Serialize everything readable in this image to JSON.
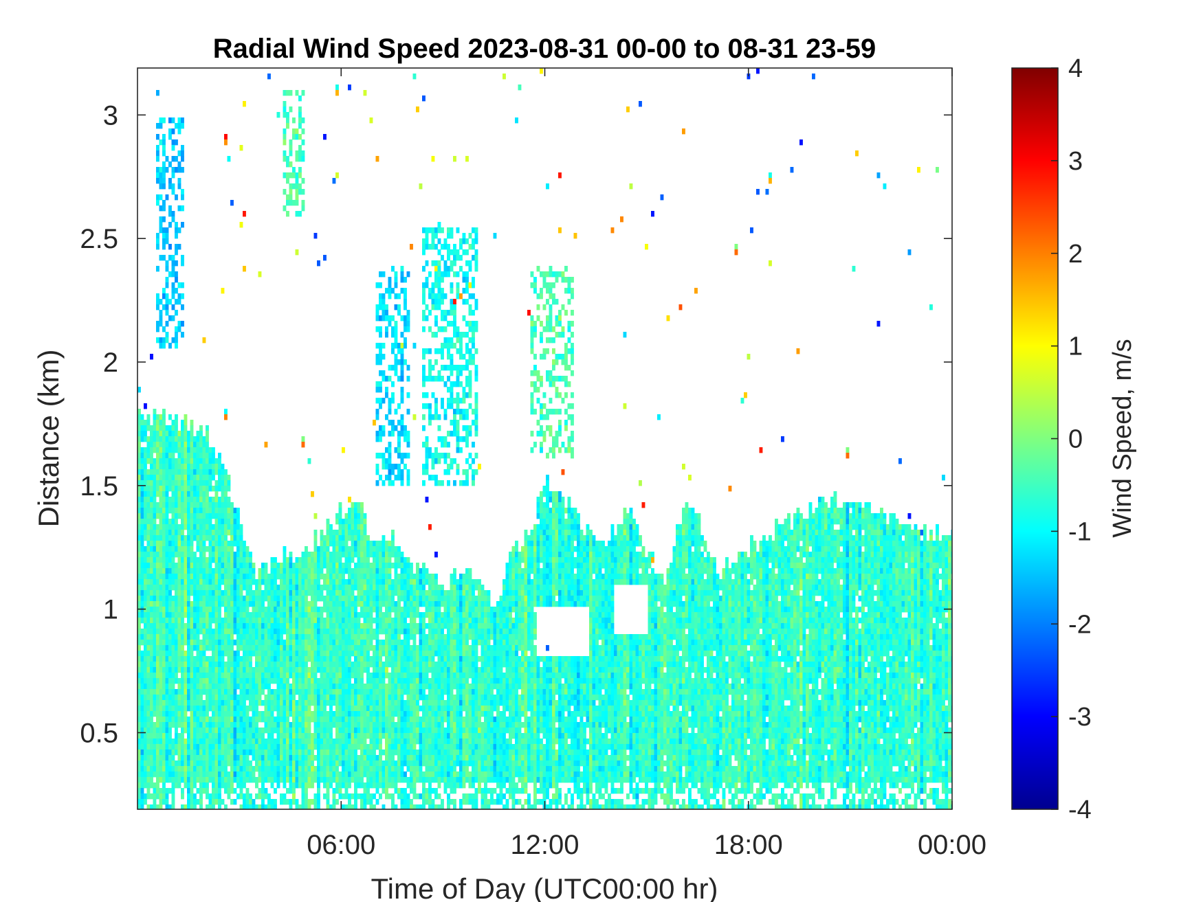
{
  "chart_data": {
    "type": "heatmap",
    "title": "Radial Wind Speed 2023-08-31 00-00 to 08-31 23-59",
    "xlabel": "Time of Day (UTC00:00 hr)",
    "ylabel": "Distance (km)",
    "x_range_hours": [
      0,
      24
    ],
    "x_ticks": [
      {
        "value": 6,
        "label": "06:00"
      },
      {
        "value": 12,
        "label": "12:00"
      },
      {
        "value": 18,
        "label": "18:00"
      },
      {
        "value": 24,
        "label": "00:00"
      }
    ],
    "y_range_km": [
      0.19,
      3.19
    ],
    "y_ticks": [
      {
        "value": 0.5,
        "label": "0.5"
      },
      {
        "value": 1,
        "label": "1"
      },
      {
        "value": 1.5,
        "label": "1.5"
      },
      {
        "value": 2,
        "label": "2"
      },
      {
        "value": 2.5,
        "label": "2.5"
      },
      {
        "value": 3,
        "label": "3"
      }
    ],
    "colorbar": {
      "label": "Wind Speed, m/s",
      "range": [
        -4,
        4
      ],
      "ticks": [
        {
          "value": -4,
          "label": "-4"
        },
        {
          "value": -3,
          "label": "-3"
        },
        {
          "value": -2,
          "label": "-2"
        },
        {
          "value": -1,
          "label": "-1"
        },
        {
          "value": 0,
          "label": "0"
        },
        {
          "value": 1,
          "label": "1"
        },
        {
          "value": 2,
          "label": "2"
        },
        {
          "value": 3,
          "label": "3"
        },
        {
          "value": 4,
          "label": "4"
        }
      ],
      "colormap": "jet"
    },
    "boundary_layer_top_km": [
      {
        "hour": 0.0,
        "km": 1.8
      },
      {
        "hour": 1.0,
        "km": 1.78
      },
      {
        "hour": 2.0,
        "km": 1.72
      },
      {
        "hour": 2.5,
        "km": 1.58
      },
      {
        "hour": 3.0,
        "km": 1.35
      },
      {
        "hour": 3.5,
        "km": 1.15
      },
      {
        "hour": 4.0,
        "km": 1.2
      },
      {
        "hour": 5.0,
        "km": 1.25
      },
      {
        "hour": 6.0,
        "km": 1.4
      },
      {
        "hour": 6.5,
        "km": 1.42
      },
      {
        "hour": 7.0,
        "km": 1.25
      },
      {
        "hour": 7.5,
        "km": 1.3
      },
      {
        "hour": 8.0,
        "km": 1.2
      },
      {
        "hour": 9.0,
        "km": 1.1
      },
      {
        "hour": 9.5,
        "km": 1.15
      },
      {
        "hour": 10.0,
        "km": 1.12
      },
      {
        "hour": 10.5,
        "km": 1.02
      },
      {
        "hour": 11.0,
        "km": 1.25
      },
      {
        "hour": 11.5,
        "km": 1.3
      },
      {
        "hour": 12.0,
        "km": 1.55
      },
      {
        "hour": 12.5,
        "km": 1.45
      },
      {
        "hour": 13.0,
        "km": 1.35
      },
      {
        "hour": 13.5,
        "km": 1.25
      },
      {
        "hour": 14.5,
        "km": 1.4
      },
      {
        "hour": 15.0,
        "km": 1.2
      },
      {
        "hour": 15.5,
        "km": 1.1
      },
      {
        "hour": 16.0,
        "km": 1.45
      },
      {
        "hour": 16.5,
        "km": 1.35
      },
      {
        "hour": 17.0,
        "km": 1.15
      },
      {
        "hour": 18.0,
        "km": 1.25
      },
      {
        "hour": 19.0,
        "km": 1.35
      },
      {
        "hour": 20.0,
        "km": 1.42
      },
      {
        "hour": 21.0,
        "km": 1.45
      },
      {
        "hour": 22.0,
        "km": 1.38
      },
      {
        "hour": 23.0,
        "km": 1.3
      },
      {
        "hour": 24.0,
        "km": 1.3
      }
    ],
    "typical_speed_ms": -0.6,
    "elevated_returns": [
      {
        "hours": [
          0.5,
          1.3
        ],
        "km": [
          2.05,
          3.0
        ],
        "speed_ms": -1.4
      },
      {
        "hours": [
          7.0,
          8.0
        ],
        "km": [
          1.5,
          2.4
        ],
        "speed_ms": -1.2
      },
      {
        "hours": [
          8.3,
          10.0
        ],
        "km": [
          1.5,
          2.55
        ],
        "speed_ms": -0.9
      },
      {
        "hours": [
          11.5,
          12.8
        ],
        "km": [
          1.6,
          2.4
        ],
        "speed_ms": -0.4
      },
      {
        "hours": [
          4.2,
          4.9
        ],
        "km": [
          2.6,
          3.1
        ],
        "speed_ms": -0.4
      }
    ],
    "gaps": [
      {
        "hours": [
          11.7,
          13.3
        ],
        "km": [
          0.8,
          1.0
        ]
      },
      {
        "hours": [
          14.0,
          15.0
        ],
        "km": [
          0.9,
          1.1
        ]
      }
    ]
  }
}
